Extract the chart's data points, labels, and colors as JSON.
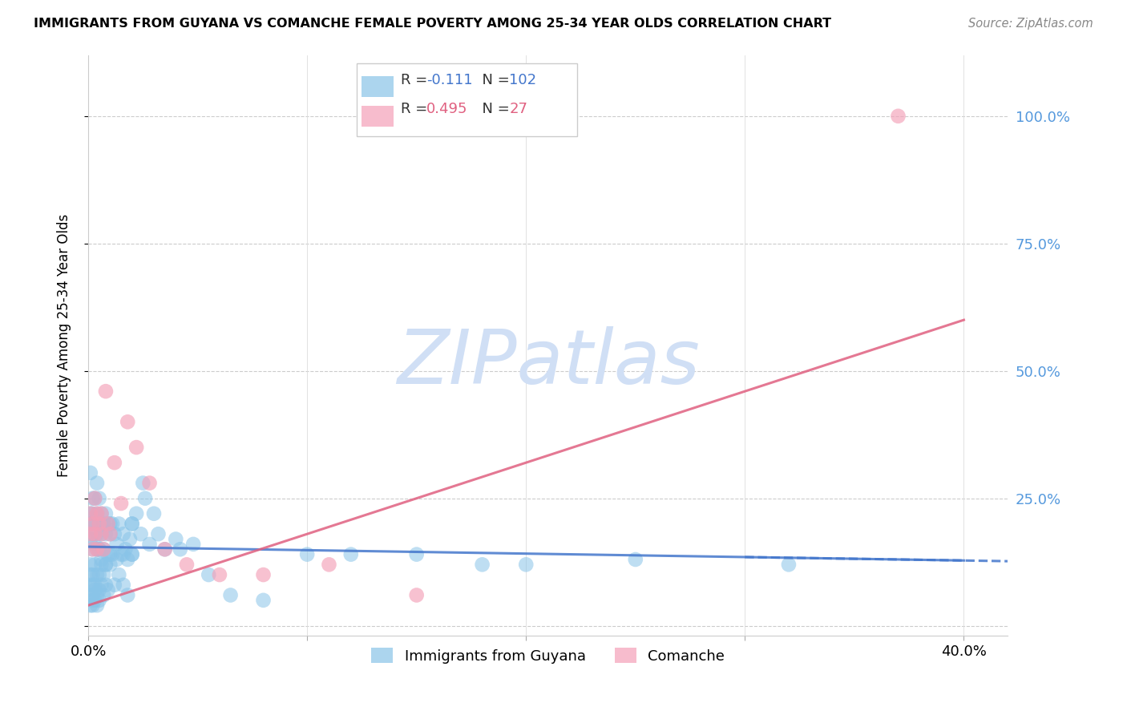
{
  "title": "IMMIGRANTS FROM GUYANA VS COMANCHE FEMALE POVERTY AMONG 25-34 YEAR OLDS CORRELATION CHART",
  "source": "Source: ZipAtlas.com",
  "ylabel": "Female Poverty Among 25-34 Year Olds",
  "xlim": [
    0.0,
    0.42
  ],
  "ylim": [
    -0.02,
    1.12
  ],
  "yticks": [
    0.0,
    0.25,
    0.5,
    0.75,
    1.0
  ],
  "xticks": [
    0.0,
    0.1,
    0.2,
    0.3,
    0.4
  ],
  "xtick_labels": [
    "0.0%",
    "",
    "",
    "",
    "40.0%"
  ],
  "blue_series_color": "#89c4e8",
  "pink_series_color": "#f4a0b8",
  "blue_line_color": "#4477cc",
  "pink_line_color": "#e06080",
  "watermark": "ZIPatlas",
  "watermark_color": "#d0dff5",
  "right_axis_color": "#5599dd",
  "right_ytick_labels": [
    "100.0%",
    "75.0%",
    "50.0%",
    "25.0%"
  ],
  "right_ytick_positions": [
    1.0,
    0.75,
    0.5,
    0.25
  ],
  "blue_line_x": [
    0.0,
    0.4
  ],
  "blue_line_y": [
    0.155,
    0.128
  ],
  "pink_line_x": [
    0.0,
    0.4
  ],
  "pink_line_y": [
    0.04,
    0.6
  ],
  "blue_scatter_x": [
    0.001,
    0.001,
    0.001,
    0.001,
    0.001,
    0.001,
    0.002,
    0.002,
    0.002,
    0.002,
    0.002,
    0.002,
    0.003,
    0.003,
    0.003,
    0.003,
    0.003,
    0.004,
    0.004,
    0.004,
    0.004,
    0.005,
    0.005,
    0.005,
    0.005,
    0.006,
    0.006,
    0.006,
    0.007,
    0.007,
    0.007,
    0.008,
    0.008,
    0.008,
    0.009,
    0.009,
    0.01,
    0.01,
    0.011,
    0.011,
    0.012,
    0.013,
    0.014,
    0.015,
    0.016,
    0.017,
    0.018,
    0.019,
    0.02,
    0.02,
    0.022,
    0.024,
    0.026,
    0.028,
    0.03,
    0.032,
    0.035,
    0.04,
    0.042,
    0.048,
    0.055,
    0.065,
    0.08,
    0.1,
    0.12,
    0.15,
    0.18,
    0.2,
    0.25,
    0.32,
    0.001,
    0.001,
    0.002,
    0.002,
    0.003,
    0.003,
    0.004,
    0.004,
    0.005,
    0.005,
    0.006,
    0.007,
    0.008,
    0.009,
    0.01,
    0.012,
    0.014,
    0.016,
    0.018,
    0.02,
    0.001,
    0.002,
    0.003,
    0.004,
    0.005,
    0.006,
    0.008,
    0.01,
    0.013,
    0.016,
    0.02,
    0.025
  ],
  "blue_scatter_y": [
    0.17,
    0.2,
    0.22,
    0.12,
    0.1,
    0.08,
    0.18,
    0.22,
    0.15,
    0.1,
    0.08,
    0.06,
    0.25,
    0.2,
    0.16,
    0.12,
    0.08,
    0.28,
    0.22,
    0.18,
    0.1,
    0.25,
    0.2,
    0.15,
    0.1,
    0.22,
    0.18,
    0.12,
    0.2,
    0.15,
    0.1,
    0.22,
    0.18,
    0.12,
    0.2,
    0.14,
    0.18,
    0.12,
    0.2,
    0.14,
    0.18,
    0.16,
    0.2,
    0.14,
    0.18,
    0.15,
    0.13,
    0.17,
    0.2,
    0.14,
    0.22,
    0.18,
    0.25,
    0.16,
    0.22,
    0.18,
    0.15,
    0.17,
    0.15,
    0.16,
    0.1,
    0.06,
    0.05,
    0.14,
    0.14,
    0.14,
    0.12,
    0.12,
    0.13,
    0.12,
    0.06,
    0.04,
    0.05,
    0.04,
    0.07,
    0.05,
    0.06,
    0.04,
    0.07,
    0.05,
    0.08,
    0.06,
    0.08,
    0.07,
    0.2,
    0.08,
    0.1,
    0.08,
    0.06,
    0.2,
    0.3,
    0.25,
    0.2,
    0.15,
    0.15,
    0.13,
    0.12,
    0.14,
    0.13,
    0.14,
    0.14,
    0.28
  ],
  "pink_scatter_x": [
    0.001,
    0.001,
    0.002,
    0.002,
    0.003,
    0.003,
    0.004,
    0.004,
    0.005,
    0.006,
    0.006,
    0.007,
    0.008,
    0.009,
    0.01,
    0.012,
    0.015,
    0.018,
    0.022,
    0.028,
    0.035,
    0.045,
    0.06,
    0.08,
    0.11,
    0.15,
    0.37
  ],
  "pink_scatter_y": [
    0.22,
    0.18,
    0.2,
    0.15,
    0.25,
    0.18,
    0.22,
    0.15,
    0.2,
    0.22,
    0.18,
    0.15,
    0.46,
    0.2,
    0.18,
    0.32,
    0.24,
    0.4,
    0.35,
    0.28,
    0.15,
    0.12,
    0.1,
    0.1,
    0.12,
    0.06,
    1.0
  ]
}
